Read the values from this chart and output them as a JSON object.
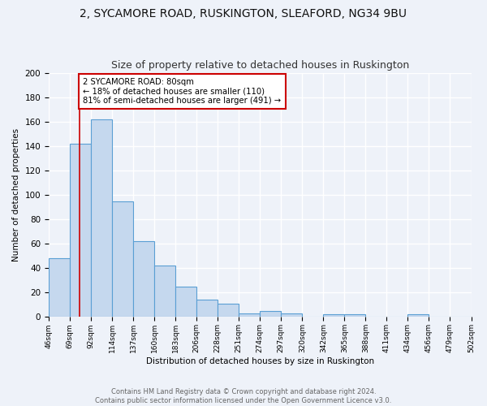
{
  "title1": "2, SYCAMORE ROAD, RUSKINGTON, SLEAFORD, NG34 9BU",
  "title2": "Size of property relative to detached houses in Ruskington",
  "xlabel": "Distribution of detached houses by size in Ruskington",
  "ylabel": "Number of detached properties",
  "all_labels": [
    "46sqm",
    "69sqm",
    "92sqm",
    "114sqm",
    "137sqm",
    "160sqm",
    "183sqm",
    "206sqm",
    "228sqm",
    "251sqm",
    "274sqm",
    "297sqm",
    "320sqm",
    "342sqm",
    "365sqm",
    "388sqm",
    "411sqm",
    "434sqm",
    "456sqm",
    "479sqm",
    "502sqm"
  ],
  "bar_vals": [
    48,
    142,
    162,
    95,
    62,
    42,
    25,
    14,
    11,
    3,
    5,
    3,
    0,
    2,
    2,
    0,
    0,
    2,
    0,
    0
  ],
  "bar_color": "#c5d8ee",
  "bar_edge_color": "#5a9fd4",
  "bar_edge_width": 0.8,
  "subject_line_color": "#cc0000",
  "annotation_text": "2 SYCAMORE ROAD: 80sqm\n← 18% of detached houses are smaller (110)\n81% of semi-detached houses are larger (491) →",
  "annotation_box_color": "#ffffff",
  "annotation_box_edge": "#cc0000",
  "ylim": [
    0,
    200
  ],
  "yticks": [
    0,
    20,
    40,
    60,
    80,
    100,
    120,
    140,
    160,
    180,
    200
  ],
  "footer1": "Contains HM Land Registry data © Crown copyright and database right 2024.",
  "footer2": "Contains public sector information licensed under the Open Government Licence v3.0.",
  "background_color": "#eef2f9",
  "grid_color": "#ffffff",
  "title1_fontsize": 10,
  "title2_fontsize": 9
}
